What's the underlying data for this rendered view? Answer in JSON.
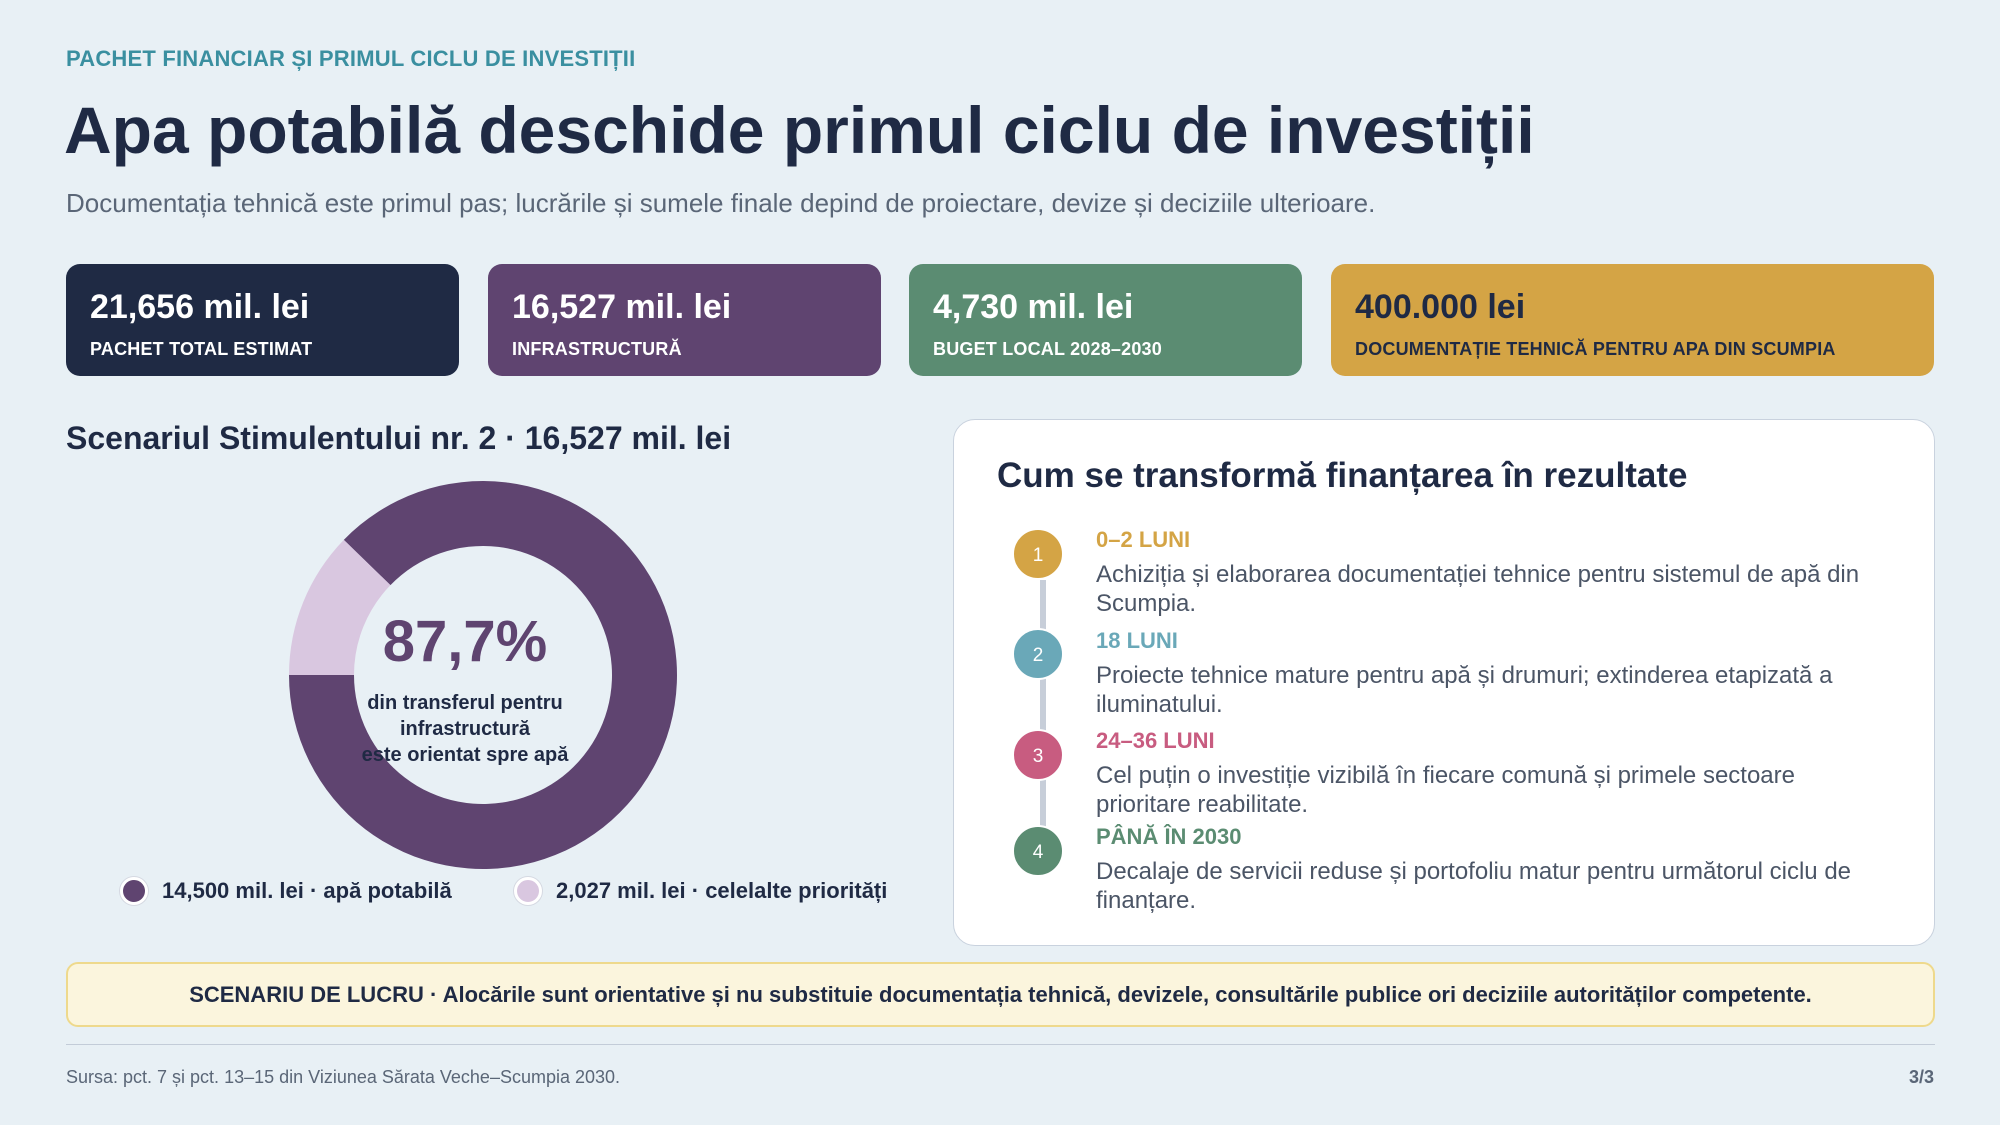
{
  "header": {
    "eyebrow": "PACHET FINANCIAR ȘI PRIMUL CICLU DE INVESTIȚII",
    "title": "Apa potabilă deschide primul ciclu de investiții",
    "subtitle": "Documentația tehnică este primul pas; lucrările și sumele finale depind de proiectare, devize și deciziile ulterioare."
  },
  "kpis": [
    {
      "value": "21,656 mil. lei",
      "label": "PACHET TOTAL ESTIMAT",
      "color": "#1f2a44"
    },
    {
      "value": "16,527 mil. lei",
      "label": "INFRASTRUCTURĂ",
      "color": "#5f4470"
    },
    {
      "value": "4,730 mil. lei",
      "label": "BUGET LOCAL 2028–2030",
      "color": "#5b8c72"
    },
    {
      "value": "400.000 lei",
      "label": "DOCUMENTAȚIE TEHNICĂ PENTRU APA DIN SCUMPIA",
      "color": "#d4a445"
    }
  ],
  "chart_data": {
    "type": "pie",
    "title": "Scenariul Stimulentului nr. 2 · 16,527 mil. lei",
    "center_value": "87,7%",
    "center_caption_lines": [
      "din transferul pentru",
      "infrastructură",
      "este orientat spre apă"
    ],
    "series": [
      {
        "name": "14,500 mil. lei · apă potabilă",
        "value": 14.5,
        "color": "#5f4470"
      },
      {
        "name": "2,027 mil. lei · celelalte priorități",
        "value": 2.027,
        "color": "#d9c7e0"
      }
    ],
    "legend_position": "bottom"
  },
  "timeline": {
    "title": "Cum se transformă finanțarea în rezultate",
    "steps": [
      {
        "num": "1",
        "head": "0–2 LUNI",
        "text": "Achiziția și elaborarea documentației tehnice pentru sistemul de apă din Scumpia.",
        "color": "#d4a445"
      },
      {
        "num": "2",
        "head": "18 LUNI",
        "text": "Proiecte tehnice mature pentru apă și drumuri; extinderea etapizată a iluminatului.",
        "color": "#6aa8b8"
      },
      {
        "num": "3",
        "head": "24–36 LUNI",
        "text": "Cel puțin o investiție vizibilă în fiecare comună și primele sectoare prioritare reabilitate.",
        "color": "#c85c80"
      },
      {
        "num": "4",
        "head": "PÂNĂ ÎN 2030",
        "text": "Decalaje de servicii reduse și portofoliu matur pentru următorul ciclu de finanțare.",
        "color": "#5b8c72"
      }
    ]
  },
  "notice": "SCENARIU DE LUCRU · Alocările sunt orientative și nu substituie documentația tehnică, devizele, consultările publice ori deciziile autorităților competente.",
  "footer": {
    "source": "Sursa: pct. 7 și pct. 13–15 din Viziunea Sărata Veche–Scumpia 2030.",
    "page": "3/3"
  }
}
